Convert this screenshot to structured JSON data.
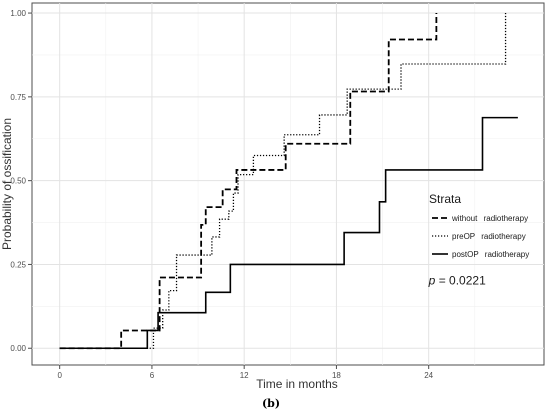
{
  "chart_data": {
    "type": "line",
    "step": true,
    "title": "",
    "xlabel": "Time in months",
    "ylabel": "Probability of ossification",
    "xlim": [
      -1.8,
      31.5
    ],
    "ylim": [
      -0.05,
      1.03
    ],
    "xticks": [
      0,
      6,
      12,
      18,
      24
    ],
    "xtick_labels": [
      "0",
      "6",
      "12",
      "18",
      "24"
    ],
    "yticks": [
      0,
      0.25,
      0.5,
      0.75,
      1.0
    ],
    "ytick_labels": [
      "0.00",
      "0.25",
      "0.50",
      "0.75",
      "1.00"
    ],
    "grid": true,
    "legend": {
      "title": "Strata",
      "position": "right",
      "entries": [
        {
          "prefix": "without",
          "suffix": "radiotherapy",
          "style": "dashed"
        },
        {
          "prefix": "preOP",
          "suffix": "radiotherapy",
          "style": "dotted"
        },
        {
          "prefix": "postOP",
          "suffix": "radiotherapy",
          "style": "solid"
        }
      ]
    },
    "annotation": {
      "italic": "p",
      "text": " = 0.0221",
      "x": 24,
      "y": 0.19
    },
    "series": [
      {
        "style": "dashed",
        "x": [
          0,
          4,
          6,
          6.5,
          7.2,
          9.2,
          9.5,
          10.3,
          10.6,
          11.3,
          11.5,
          13.5,
          14.7,
          18.5,
          18.9,
          20.8,
          21.4,
          22.7,
          24.5
        ],
        "y": [
          0,
          0.053,
          0.053,
          0.211,
          0.211,
          0.368,
          0.421,
          0.421,
          0.474,
          0.474,
          0.532,
          0.532,
          0.61,
          0.61,
          0.766,
          0.766,
          0.921,
          0.921,
          1.0
        ]
      },
      {
        "style": "dotted",
        "x": [
          0,
          6.1,
          6.7,
          7.1,
          7.6,
          9.4,
          9.9,
          10.4,
          11.0,
          11.3,
          11.6,
          12.0,
          12.6,
          12.9,
          14.6,
          14.9,
          16.9,
          18.4,
          18.7,
          19.6,
          22.2,
          22.5,
          29.0
        ],
        "y": [
          0,
          0.06,
          0.114,
          0.172,
          0.278,
          0.278,
          0.332,
          0.385,
          0.409,
          0.463,
          0.518,
          0.518,
          0.575,
          0.575,
          0.637,
          0.637,
          0.696,
          0.696,
          0.773,
          0.773,
          0.848,
          0.848,
          1.0
        ]
      },
      {
        "style": "solid",
        "x": [
          0,
          5.7,
          6.4,
          9.5,
          11.1,
          18.5,
          20.8,
          21.2,
          27.5,
          29.8
        ],
        "y": [
          0,
          0.053,
          0.106,
          0.167,
          0.25,
          0.345,
          0.437,
          0.532,
          0.688,
          0.688
        ]
      }
    ]
  },
  "caption": "(b)"
}
